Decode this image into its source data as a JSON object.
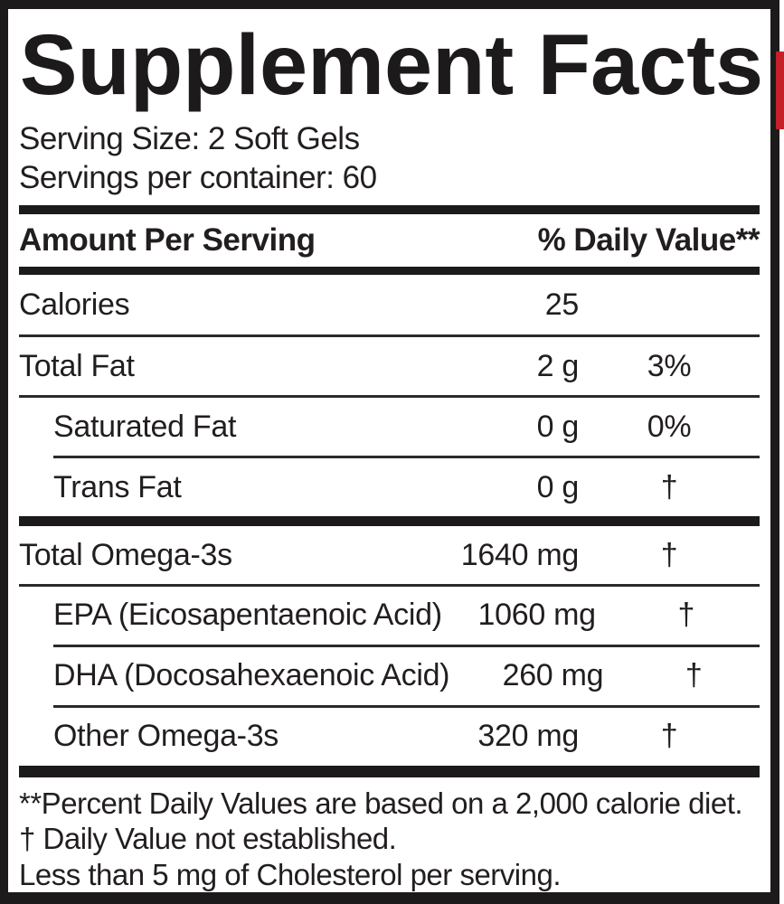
{
  "label": {
    "title": "Supplement Facts",
    "serving_size": "Serving Size: 2 Soft Gels",
    "servings_per_container": "Servings per container: 60",
    "header": {
      "amount_col": "Amount Per Serving",
      "dv_col": "% Daily Value**"
    },
    "rows": [
      {
        "name": "Calories",
        "amount": "25",
        "dv": ""
      },
      {
        "name": "Total Fat",
        "amount": "2 g",
        "dv": "3%"
      },
      {
        "name": "Saturated Fat",
        "amount": "0 g",
        "dv": "0%"
      },
      {
        "name": "Trans Fat",
        "amount": "0 g",
        "dv": "†"
      },
      {
        "name": "Total Omega-3s",
        "amount": "1640 mg",
        "dv": "†"
      },
      {
        "name": "EPA (Eicosapentaenoic Acid)",
        "amount": "1060 mg",
        "dv": "†"
      },
      {
        "name": "DHA (Docosahexaenoic Acid)",
        "amount": "260 mg",
        "dv": "†"
      },
      {
        "name": "Other Omega-3s",
        "amount": "320 mg",
        "dv": "†"
      }
    ],
    "footnotes": [
      "**Percent Daily Values are based on a 2,000 calorie diet.",
      "†  Daily Value not established.",
      "Less than 5 mg of Cholesterol per serving."
    ],
    "colors": {
      "ink": "#1d1a1b",
      "background": "#ffffff",
      "accent_red": "#c32027"
    }
  }
}
